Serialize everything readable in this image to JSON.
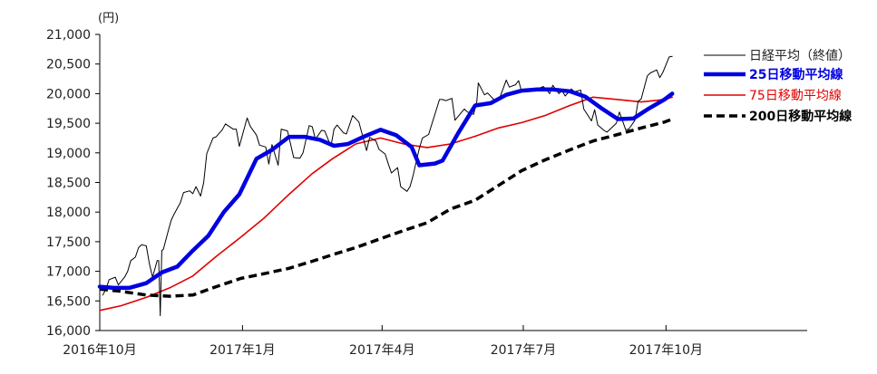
{
  "chart_data": {
    "type": "line",
    "title": "",
    "xlabel": "",
    "ylabel": "",
    "y_unit": "(円)",
    "ylim": [
      16000,
      21000
    ],
    "y_ticks": [
      {
        "value": 16000,
        "label": "16,000"
      },
      {
        "value": 16500,
        "label": "16,500"
      },
      {
        "value": 17000,
        "label": "17,000"
      },
      {
        "value": 17500,
        "label": "17,500"
      },
      {
        "value": 18000,
        "label": "18,000"
      },
      {
        "value": 18500,
        "label": "18,500"
      },
      {
        "value": 19000,
        "label": "19,000"
      },
      {
        "value": 19500,
        "label": "19,500"
      },
      {
        "value": 20000,
        "label": "20,000"
      },
      {
        "value": 20500,
        "label": "20,500"
      },
      {
        "value": 21000,
        "label": "21,000"
      }
    ],
    "xlim": [
      "2016-10-01",
      "2017-12-31"
    ],
    "x_ticks": [
      {
        "value": "2016-10-01",
        "label": "2016年10月"
      },
      {
        "value": "2017-01-01",
        "label": "2017年1月"
      },
      {
        "value": "2017-04-01",
        "label": "2017年4月"
      },
      {
        "value": "2017-07-01",
        "label": "2017年7月"
      },
      {
        "value": "2017-10-01",
        "label": "2017年10月"
      }
    ],
    "grid": false,
    "legend_position": "right",
    "series": [
      {
        "name": "日経平均（終値）",
        "color": "#000000",
        "style": "thin",
        "points": [
          [
            "2016-10-03",
            16600
          ],
          [
            "2016-10-05",
            16700
          ],
          [
            "2016-10-07",
            16860
          ],
          [
            "2016-10-11",
            16900
          ],
          [
            "2016-10-13",
            16770
          ],
          [
            "2016-10-17",
            16900
          ],
          [
            "2016-10-19",
            17000
          ],
          [
            "2016-10-21",
            17180
          ],
          [
            "2016-10-24",
            17240
          ],
          [
            "2016-10-26",
            17400
          ],
          [
            "2016-10-28",
            17450
          ],
          [
            "2016-10-31",
            17430
          ],
          [
            "2016-11-02",
            17130
          ],
          [
            "2016-11-04",
            16900
          ],
          [
            "2016-11-07",
            17180
          ],
          [
            "2016-11-08",
            17180
          ],
          [
            "2016-11-09",
            16250
          ],
          [
            "2016-11-10",
            17350
          ],
          [
            "2016-11-11",
            17370
          ],
          [
            "2016-11-14",
            17670
          ],
          [
            "2016-11-16",
            17860
          ],
          [
            "2016-11-18",
            17970
          ],
          [
            "2016-11-22",
            18160
          ],
          [
            "2016-11-24",
            18330
          ],
          [
            "2016-11-28",
            18360
          ],
          [
            "2016-11-30",
            18310
          ],
          [
            "2016-12-02",
            18430
          ],
          [
            "2016-12-05",
            18270
          ],
          [
            "2016-12-07",
            18500
          ],
          [
            "2016-12-09",
            18990
          ],
          [
            "2016-12-13",
            19250
          ],
          [
            "2016-12-15",
            19270
          ],
          [
            "2016-12-19",
            19390
          ],
          [
            "2016-12-21",
            19490
          ],
          [
            "2016-12-26",
            19400
          ],
          [
            "2016-12-28",
            19400
          ],
          [
            "2016-12-30",
            19110
          ],
          [
            "2017-01-04",
            19590
          ],
          [
            "2017-01-06",
            19450
          ],
          [
            "2017-01-10",
            19300
          ],
          [
            "2017-01-12",
            19130
          ],
          [
            "2017-01-16",
            19100
          ],
          [
            "2017-01-18",
            18810
          ],
          [
            "2017-01-20",
            19140
          ],
          [
            "2017-01-24",
            18790
          ],
          [
            "2017-01-26",
            19400
          ],
          [
            "2017-01-30",
            19370
          ],
          [
            "2017-02-01",
            19150
          ],
          [
            "2017-02-03",
            18920
          ],
          [
            "2017-02-07",
            18910
          ],
          [
            "2017-02-09",
            19000
          ],
          [
            "2017-02-13",
            19460
          ],
          [
            "2017-02-15",
            19440
          ],
          [
            "2017-02-17",
            19230
          ],
          [
            "2017-02-21",
            19380
          ],
          [
            "2017-02-23",
            19370
          ],
          [
            "2017-02-27",
            19110
          ],
          [
            "2017-03-01",
            19400
          ],
          [
            "2017-03-03",
            19470
          ],
          [
            "2017-03-07",
            19340
          ],
          [
            "2017-03-09",
            19320
          ],
          [
            "2017-03-13",
            19630
          ],
          [
            "2017-03-15",
            19580
          ],
          [
            "2017-03-17",
            19520
          ],
          [
            "2017-03-22",
            19040
          ],
          [
            "2017-03-24",
            19260
          ],
          [
            "2017-03-28",
            19200
          ],
          [
            "2017-03-30",
            19060
          ],
          [
            "2017-04-03",
            18980
          ],
          [
            "2017-04-05",
            18810
          ],
          [
            "2017-04-07",
            18660
          ],
          [
            "2017-04-11",
            18750
          ],
          [
            "2017-04-13",
            18430
          ],
          [
            "2017-04-17",
            18350
          ],
          [
            "2017-04-19",
            18430
          ],
          [
            "2017-04-21",
            18620
          ],
          [
            "2017-04-25",
            19080
          ],
          [
            "2017-04-27",
            19250
          ],
          [
            "2017-05-01",
            19310
          ],
          [
            "2017-05-08",
            19900
          ],
          [
            "2017-05-10",
            19900
          ],
          [
            "2017-05-12",
            19880
          ],
          [
            "2017-05-16",
            19920
          ],
          [
            "2017-05-18",
            19550
          ],
          [
            "2017-05-22",
            19680
          ],
          [
            "2017-05-24",
            19740
          ],
          [
            "2017-05-26",
            19690
          ],
          [
            "2017-05-30",
            19650
          ],
          [
            "2017-06-01",
            19860
          ],
          [
            "2017-06-02",
            20180
          ],
          [
            "2017-06-06",
            19980
          ],
          [
            "2017-06-08",
            20010
          ],
          [
            "2017-06-12",
            19900
          ],
          [
            "2017-06-14",
            19880
          ],
          [
            "2017-06-16",
            19940
          ],
          [
            "2017-06-20",
            20230
          ],
          [
            "2017-06-22",
            20110
          ],
          [
            "2017-06-26",
            20150
          ],
          [
            "2017-06-28",
            20220
          ],
          [
            "2017-06-30",
            20030
          ],
          [
            "2017-07-04",
            20030
          ],
          [
            "2017-07-06",
            20080
          ],
          [
            "2017-07-10",
            20080
          ],
          [
            "2017-07-12",
            20100
          ],
          [
            "2017-07-14",
            20120
          ],
          [
            "2017-07-18",
            20000
          ],
          [
            "2017-07-20",
            20140
          ],
          [
            "2017-07-24",
            20000
          ],
          [
            "2017-07-26",
            20050
          ],
          [
            "2017-07-28",
            19960
          ],
          [
            "2017-08-01",
            20080
          ],
          [
            "2017-08-03",
            20030
          ],
          [
            "2017-08-07",
            20060
          ],
          [
            "2017-08-09",
            19740
          ],
          [
            "2017-08-14",
            19540
          ],
          [
            "2017-08-16",
            19730
          ],
          [
            "2017-08-18",
            19470
          ],
          [
            "2017-08-22",
            19380
          ],
          [
            "2017-08-24",
            19350
          ],
          [
            "2017-08-28",
            19450
          ],
          [
            "2017-08-30",
            19500
          ],
          [
            "2017-09-01",
            19690
          ],
          [
            "2017-09-05",
            19390
          ],
          [
            "2017-09-07",
            19400
          ],
          [
            "2017-09-11",
            19550
          ],
          [
            "2017-09-13",
            19870
          ],
          [
            "2017-09-15",
            19910
          ],
          [
            "2017-09-19",
            20300
          ],
          [
            "2017-09-21",
            20350
          ],
          [
            "2017-09-25",
            20400
          ],
          [
            "2017-09-27",
            20270
          ],
          [
            "2017-09-29",
            20360
          ],
          [
            "2017-10-03",
            20620
          ],
          [
            "2017-10-05",
            20630
          ]
        ]
      },
      {
        "name": "25日移動平均線",
        "color": "#0000e0",
        "style": "bold",
        "points": [
          [
            "2016-10-01",
            16740
          ],
          [
            "2016-10-10",
            16720
          ],
          [
            "2016-10-20",
            16720
          ],
          [
            "2016-10-31",
            16800
          ],
          [
            "2016-11-10",
            16980
          ],
          [
            "2016-11-20",
            17080
          ],
          [
            "2016-11-30",
            17350
          ],
          [
            "2016-12-10",
            17600
          ],
          [
            "2016-12-20",
            18000
          ],
          [
            "2016-12-30",
            18300
          ],
          [
            "2017-01-10",
            18900
          ],
          [
            "2017-01-20",
            19050
          ],
          [
            "2017-01-31",
            19270
          ],
          [
            "2017-02-10",
            19270
          ],
          [
            "2017-02-20",
            19220
          ],
          [
            "2017-03-01",
            19120
          ],
          [
            "2017-03-10",
            19150
          ],
          [
            "2017-03-20",
            19270
          ],
          [
            "2017-03-31",
            19390
          ],
          [
            "2017-04-10",
            19300
          ],
          [
            "2017-04-20",
            19100
          ],
          [
            "2017-04-25",
            18790
          ],
          [
            "2017-05-05",
            18820
          ],
          [
            "2017-05-10",
            18870
          ],
          [
            "2017-05-20",
            19330
          ],
          [
            "2017-05-31",
            19800
          ],
          [
            "2017-06-10",
            19840
          ],
          [
            "2017-06-20",
            19980
          ],
          [
            "2017-06-30",
            20050
          ],
          [
            "2017-07-10",
            20070
          ],
          [
            "2017-07-20",
            20070
          ],
          [
            "2017-07-31",
            20040
          ],
          [
            "2017-08-10",
            19950
          ],
          [
            "2017-08-20",
            19760
          ],
          [
            "2017-08-31",
            19570
          ],
          [
            "2017-09-10",
            19580
          ],
          [
            "2017-09-20",
            19750
          ],
          [
            "2017-09-30",
            19900
          ],
          [
            "2017-10-05",
            20000
          ]
        ]
      },
      {
        "name": "75日移動平均線",
        "color": "#e00000",
        "style": "medium",
        "points": [
          [
            "2016-10-01",
            16340
          ],
          [
            "2016-10-15",
            16420
          ],
          [
            "2016-10-31",
            16560
          ],
          [
            "2016-11-15",
            16720
          ],
          [
            "2016-11-30",
            16920
          ],
          [
            "2016-12-15",
            17250
          ],
          [
            "2016-12-31",
            17580
          ],
          [
            "2017-01-15",
            17900
          ],
          [
            "2017-01-31",
            18300
          ],
          [
            "2017-02-15",
            18650
          ],
          [
            "2017-02-28",
            18900
          ],
          [
            "2017-03-15",
            19150
          ],
          [
            "2017-03-31",
            19250
          ],
          [
            "2017-04-15",
            19150
          ],
          [
            "2017-04-30",
            19090
          ],
          [
            "2017-05-15",
            19150
          ],
          [
            "2017-05-31",
            19280
          ],
          [
            "2017-06-15",
            19420
          ],
          [
            "2017-06-30",
            19510
          ],
          [
            "2017-07-15",
            19630
          ],
          [
            "2017-07-31",
            19800
          ],
          [
            "2017-08-15",
            19940
          ],
          [
            "2017-08-31",
            19900
          ],
          [
            "2017-09-15",
            19860
          ],
          [
            "2017-09-30",
            19900
          ],
          [
            "2017-10-05",
            19940
          ]
        ]
      },
      {
        "name": "200日移動平均線",
        "color": "#000000",
        "style": "dashed",
        "points": [
          [
            "2016-10-01",
            16700
          ],
          [
            "2016-10-15",
            16660
          ],
          [
            "2016-10-31",
            16600
          ],
          [
            "2016-11-15",
            16580
          ],
          [
            "2016-11-30",
            16600
          ],
          [
            "2016-12-15",
            16740
          ],
          [
            "2016-12-31",
            16880
          ],
          [
            "2017-01-15",
            16960
          ],
          [
            "2017-01-31",
            17050
          ],
          [
            "2017-02-15",
            17170
          ],
          [
            "2017-02-28",
            17280
          ],
          [
            "2017-03-15",
            17400
          ],
          [
            "2017-03-31",
            17550
          ],
          [
            "2017-04-15",
            17690
          ],
          [
            "2017-04-30",
            17820
          ],
          [
            "2017-05-15",
            18050
          ],
          [
            "2017-05-31",
            18200
          ],
          [
            "2017-06-15",
            18450
          ],
          [
            "2017-06-30",
            18700
          ],
          [
            "2017-07-15",
            18880
          ],
          [
            "2017-07-31",
            19050
          ],
          [
            "2017-08-15",
            19200
          ],
          [
            "2017-08-31",
            19310
          ],
          [
            "2017-09-15",
            19420
          ],
          [
            "2017-09-30",
            19520
          ],
          [
            "2017-10-05",
            19570
          ]
        ]
      }
    ]
  }
}
